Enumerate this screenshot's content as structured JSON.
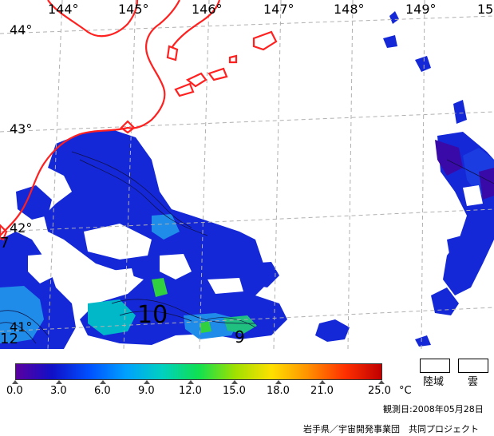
{
  "map": {
    "lon_labels": [
      "144°",
      "145°",
      "146°",
      "147°",
      "148°",
      "149°",
      "15"
    ],
    "lat_labels": [
      "44°",
      "43°",
      "42°",
      "41°"
    ],
    "contour_labels": [
      "10",
      "9",
      "7",
      "12"
    ]
  },
  "colorbar": {
    "ticks": [
      "0.0",
      "3.0",
      "6.0",
      "9.0",
      "12.0",
      "15.0",
      "18.0",
      "21.0",
      "25.0"
    ],
    "unit": "°C",
    "gradient": [
      "#5a00a0",
      "#1010c8",
      "#0050ff",
      "#00a0ff",
      "#00d0c0",
      "#10e050",
      "#a0e000",
      "#ffe000",
      "#ff9000",
      "#ff3000",
      "#c00000"
    ]
  },
  "legend": {
    "land_label": "陸域",
    "cloud_label": "雲"
  },
  "footer": {
    "observation_date": "観測日:2008年05月28日",
    "credit": "岩手県／宇宙開発事業団　共同プロジェクト"
  },
  "colors": {
    "coastline": "#ff2020",
    "water_blue": "#0a2adc",
    "grid": "#b0b0b0"
  }
}
